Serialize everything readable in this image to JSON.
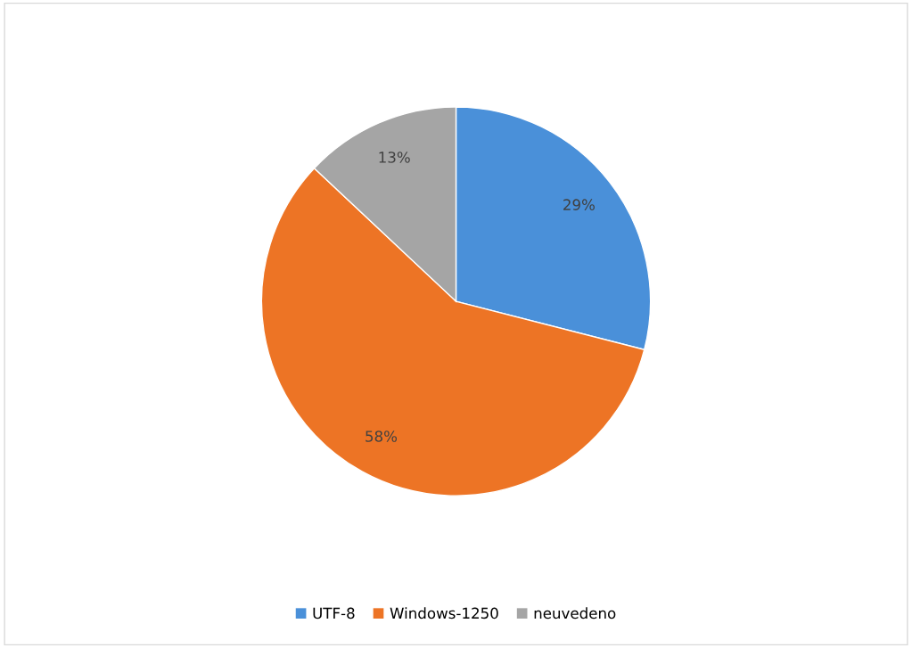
{
  "chart_data": {
    "type": "pie",
    "categories": [
      "UTF-8",
      "Windows-1250",
      "neuvedeno"
    ],
    "values": [
      29,
      58,
      13
    ],
    "colors": [
      "#4a90d9",
      "#ed7425",
      "#a5a5a5"
    ],
    "value_labels": [
      "29%",
      "58%",
      "13%"
    ],
    "legend": "bottom"
  }
}
